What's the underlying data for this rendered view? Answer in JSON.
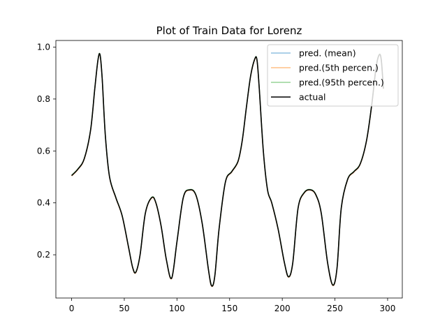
{
  "chart_data": {
    "type": "line",
    "title": "Plot of Train Data for Lorenz",
    "xlabel": "",
    "ylabel": "",
    "xlim": [
      -14.95,
      313.95
    ],
    "ylim": [
      0.0335,
      1.0255
    ],
    "x_ticks": [
      0,
      50,
      100,
      150,
      200,
      250,
      300
    ],
    "y_ticks": [
      0.2,
      0.4,
      0.6,
      0.8,
      1.0
    ],
    "y_tick_labels": [
      "0.2",
      "0.4",
      "0.6",
      "0.8",
      "1.0"
    ],
    "grid": false,
    "legend_position": "top-right",
    "keypoints_x": [
      0,
      6,
      12,
      18,
      22,
      25,
      27,
      29,
      32,
      36,
      42,
      48,
      54,
      58,
      61,
      65,
      70,
      76,
      80,
      85,
      90,
      95,
      100,
      106,
      112,
      118,
      124,
      130,
      133,
      136,
      140,
      146,
      152,
      158,
      162,
      166,
      170,
      174,
      176,
      178,
      182,
      186,
      190,
      196,
      202,
      206,
      210,
      215,
      221,
      227,
      232,
      237,
      243,
      248,
      252,
      256,
      262,
      268,
      274,
      280,
      285,
      289,
      292,
      294,
      296
    ],
    "keypoints_y": [
      0.505,
      0.53,
      0.57,
      0.68,
      0.84,
      0.95,
      0.97,
      0.88,
      0.66,
      0.5,
      0.42,
      0.35,
      0.23,
      0.15,
      0.133,
      0.2,
      0.36,
      0.42,
      0.4,
      0.31,
      0.18,
      0.11,
      0.25,
      0.42,
      0.45,
      0.43,
      0.32,
      0.14,
      0.08,
      0.12,
      0.3,
      0.48,
      0.52,
      0.56,
      0.64,
      0.77,
      0.89,
      0.955,
      0.95,
      0.85,
      0.6,
      0.45,
      0.4,
      0.3,
      0.17,
      0.115,
      0.17,
      0.38,
      0.44,
      0.45,
      0.43,
      0.36,
      0.17,
      0.083,
      0.15,
      0.38,
      0.49,
      0.52,
      0.55,
      0.64,
      0.78,
      0.92,
      0.97,
      0.95,
      0.84
    ],
    "series": [
      {
        "name": "pred. (mean)",
        "color": "#8fc0e0",
        "width": 1.5
      },
      {
        "name": "pred.(5th percen.)",
        "color": "#ffbf86",
        "width": 1.5
      },
      {
        "name": "pred.(95th percen.)",
        "color": "#97d497",
        "width": 1.5
      },
      {
        "name": "actual",
        "color": "#000000",
        "width": 1.6
      }
    ]
  }
}
